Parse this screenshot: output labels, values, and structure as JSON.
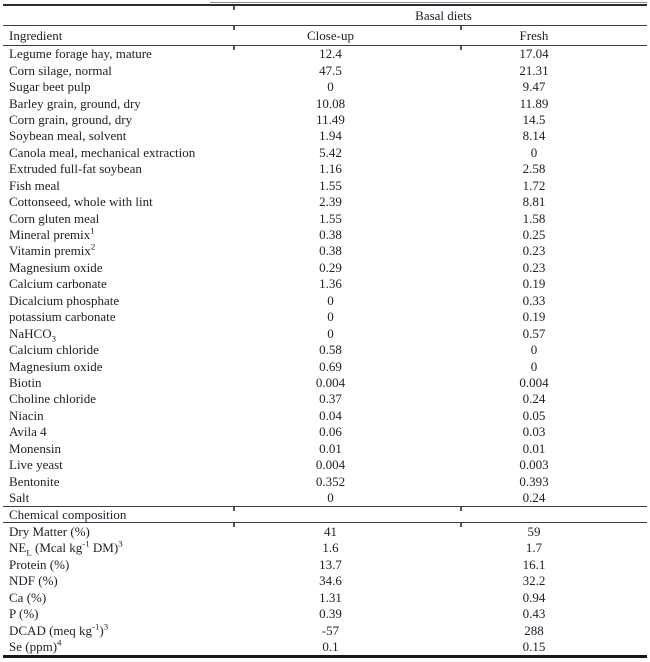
{
  "table": {
    "spanner": "Basal diets",
    "columns": [
      "Ingredient",
      "Close-up",
      "Fresh"
    ],
    "section2_title": "Chemical composition",
    "ingredients": [
      {
        "name": "Legume forage hay, mature",
        "close_up": "12.4",
        "fresh": "17.04"
      },
      {
        "name": "Corn silage, normal",
        "close_up": "47.5",
        "fresh": "21.31"
      },
      {
        "name": "Sugar beet pulp",
        "close_up": "0",
        "fresh": "9.47"
      },
      {
        "name": "Barley grain, ground, dry",
        "close_up": "10.08",
        "fresh": "11.89"
      },
      {
        "name": "Corn grain, ground, dry",
        "close_up": "11.49",
        "fresh": "14.5"
      },
      {
        "name": "Soybean meal, solvent",
        "close_up": "1.94",
        "fresh": "8.14"
      },
      {
        "name": "Canola meal, mechanical extraction",
        "close_up": "5.42",
        "fresh": "0"
      },
      {
        "name": "Extruded full-fat soybean",
        "close_up": "1.16",
        "fresh": "2.58"
      },
      {
        "name": "Fish meal",
        "close_up": "1.55",
        "fresh": "1.72"
      },
      {
        "name": "Cottonseed, whole with lint",
        "close_up": "2.39",
        "fresh": "8.81"
      },
      {
        "name": "Corn gluten meal",
        "close_up": "1.55",
        "fresh": "1.58"
      },
      {
        "name": "Mineral premix^{1}",
        "close_up": "0.38",
        "fresh": "0.25"
      },
      {
        "name": "Vitamin premix^{2}",
        "close_up": "0.38",
        "fresh": "0.23"
      },
      {
        "name": "Magnesium oxide",
        "close_up": "0.29",
        "fresh": "0.23"
      },
      {
        "name": "Calcium carbonate",
        "close_up": "1.36",
        "fresh": "0.19"
      },
      {
        "name": "Dicalcium phosphate",
        "close_up": "0",
        "fresh": "0.33"
      },
      {
        "name": "potassium carbonate",
        "close_up": "0",
        "fresh": "0.19"
      },
      {
        "name": "NaHCO_{3}",
        "close_up": "0",
        "fresh": "0.57"
      },
      {
        "name": "Calcium chloride",
        "close_up": "0.58",
        "fresh": "0"
      },
      {
        "name": "Magnesium oxide",
        "close_up": "0.69",
        "fresh": "0"
      },
      {
        "name": "Biotin",
        "close_up": "0.004",
        "fresh": "0.004"
      },
      {
        "name": "Choline chloride",
        "close_up": "0.37",
        "fresh": "0.24"
      },
      {
        "name": "Niacin",
        "close_up": "0.04",
        "fresh": "0.05"
      },
      {
        "name": "Avila 4",
        "close_up": "0.06",
        "fresh": "0.03"
      },
      {
        "name": "Monensin",
        "close_up": "0.01",
        "fresh": "0.01"
      },
      {
        "name": "Live yeast",
        "close_up": "0.004",
        "fresh": "0.003"
      },
      {
        "name": "Bentonite",
        "close_up": "0.352",
        "fresh": "0.393"
      },
      {
        "name": "Salt",
        "close_up": "0",
        "fresh": "0.24"
      }
    ],
    "chemical_composition": [
      {
        "name": "Dry Matter (%)",
        "close_up": "41",
        "fresh": "59"
      },
      {
        "name": "NE_{L} (Mcal kg^{-1} DM)^{3}",
        "close_up": "1.6",
        "fresh": "1.7"
      },
      {
        "name": "Protein (%)",
        "close_up": "13.7",
        "fresh": "16.1"
      },
      {
        "name": "NDF (%)",
        "close_up": "34.6",
        "fresh": "32.2"
      },
      {
        "name": "Ca (%)",
        "close_up": "1.31",
        "fresh": "0.94"
      },
      {
        "name": "P (%)",
        "close_up": "0.39",
        "fresh": "0.43"
      },
      {
        "name": "DCAD (meq kg^{-1})^{3}",
        "close_up": "-57",
        "fresh": "288"
      },
      {
        "name": "Se (ppm)^{4}",
        "close_up": "0.1",
        "fresh": "0.15"
      }
    ]
  }
}
